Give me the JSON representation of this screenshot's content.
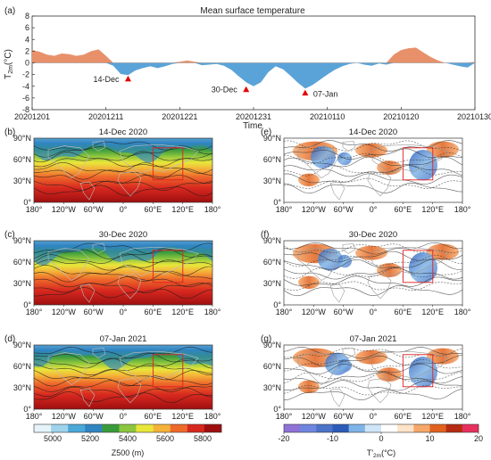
{
  "chart_data": [
    {
      "type": "area",
      "panel": "(a)",
      "title": "Mean surface temperature",
      "ylabel": "T2m (°C)",
      "ylabel_main": "T",
      "ylabel_sub": "2m",
      "ylabel_unit": "(°C)",
      "xlabel": "Time",
      "ylim": [
        -8,
        8
      ],
      "yticks": [
        8,
        6,
        4,
        2,
        0,
        -2,
        -4,
        -6,
        -8
      ],
      "xtick_labels": [
        "20201201",
        "20201211",
        "20201221",
        "20201231",
        "20210110",
        "20210120",
        "20210130"
      ],
      "xtick_days": [
        0,
        10,
        20,
        30,
        40,
        50,
        60
      ],
      "positive_color": "#e8906a",
      "negative_color": "#5aa3d8",
      "x_days": [
        0,
        1,
        2,
        3,
        4,
        5,
        6,
        7,
        8,
        9,
        10,
        11,
        12,
        13,
        14,
        15,
        16,
        17,
        18,
        19,
        20,
        21,
        22,
        23,
        24,
        25,
        26,
        27,
        28,
        29,
        30,
        31,
        32,
        33,
        34,
        35,
        36,
        37,
        38,
        39,
        40,
        41,
        42,
        43,
        44,
        45,
        46,
        47,
        48,
        49,
        50,
        51,
        52,
        53,
        54,
        55,
        56,
        57,
        58,
        59,
        60
      ],
      "values": [
        2.2,
        1.9,
        1.4,
        1.2,
        1.6,
        1.5,
        1.2,
        1.4,
        2.0,
        2.3,
        1.2,
        -0.5,
        -1.9,
        -2.1,
        -1.3,
        -0.9,
        -0.6,
        -0.9,
        -0.6,
        -0.2,
        0.2,
        0.4,
        0.2,
        -0.4,
        -0.3,
        -0.2,
        -0.5,
        -1.2,
        -2.3,
        -3.3,
        -4.0,
        -3.3,
        -1.6,
        -0.6,
        -1.1,
        -2.2,
        -3.4,
        -4.4,
        -3.8,
        -2.9,
        -2.0,
        -1.2,
        -0.6,
        -0.2,
        0.0,
        -0.3,
        -0.5,
        -0.1,
        -0.3,
        1.4,
        2.2,
        2.5,
        2.6,
        1.8,
        1.0,
        0.4,
        0.0,
        -0.3,
        -0.6,
        -0.8,
        0.2
      ],
      "annotations": [
        {
          "label": "14-Dec",
          "day": 13,
          "value": -2.8,
          "marker_color": "#e60000"
        },
        {
          "label": "30-Dec",
          "day": 29,
          "value": -4.6,
          "marker_color": "#e60000"
        },
        {
          "label": "07-Jan",
          "day": 37,
          "value": -5.2,
          "marker_color": "#e60000"
        }
      ]
    },
    {
      "type": "heatmap",
      "panels_left": [
        {
          "panel": "(b)",
          "title": "14-Dec 2020"
        },
        {
          "panel": "(c)",
          "title": "30-Dec 2020"
        },
        {
          "panel": "(d)",
          "title": "07-Jan 2021"
        }
      ],
      "y_tick_labels": [
        "90°N",
        "60°N",
        "30°N",
        "0°"
      ],
      "x_tick_labels": [
        "180°",
        "120°W",
        "60°W",
        "0°",
        "60°E",
        "120°E",
        "180°"
      ],
      "colorbar": {
        "label": "Z500 (m)",
        "ticks": [
          "5000",
          "5200",
          "5400",
          "5600",
          "5800"
        ],
        "range": [
          4900,
          5900
        ],
        "colors": [
          "#e6f4fa",
          "#9fd3ec",
          "#4aa8d8",
          "#2f84c1",
          "#3a9b3c",
          "#8cc63f",
          "#e9e63a",
          "#f4b23a",
          "#ee6a2b",
          "#d7281f",
          "#9e0f10"
        ]
      }
    },
    {
      "type": "heatmap",
      "panels_right": [
        {
          "panel": "(e)",
          "title": "14-Dec 2020"
        },
        {
          "panel": "(f)",
          "title": "30-Dec 2020"
        },
        {
          "panel": "(g)",
          "title": "07-Jan 2021"
        }
      ],
      "y_tick_labels": [
        "90°N",
        "60°N",
        "30°N",
        "0°"
      ],
      "x_tick_labels": [
        "180°",
        "120°W",
        "60°W",
        "0°",
        "60°E",
        "120°E",
        "180°"
      ],
      "colorbar": {
        "label_main": "T'",
        "label_sub": "2m",
        "label_unit": "(°C)",
        "ticks": [
          "-20",
          "-10",
          "0",
          "10",
          "20"
        ],
        "range": [
          -20,
          20
        ],
        "colors": [
          "#8f72d8",
          "#6f86e0",
          "#4b73c9",
          "#2c5bb8",
          "#7fb4e6",
          "#cfe6f7",
          "#ffffff",
          "#fde3c8",
          "#f6a86a",
          "#e1621e",
          "#b52c12",
          "#e8305e"
        ]
      }
    }
  ]
}
